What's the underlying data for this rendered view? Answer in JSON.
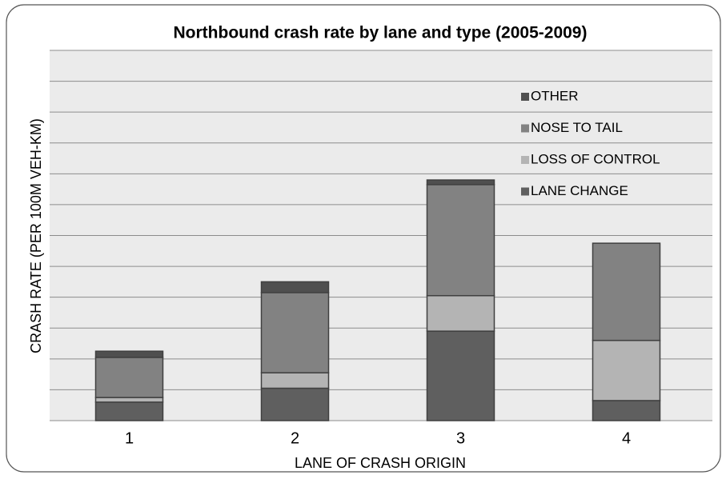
{
  "chart_data": {
    "type": "stacked-bar",
    "title": "Northbound crash rate by lane and type (2005-2009)",
    "x_label": "LANE OF CRASH ORIGIN",
    "y_label": "CRASH RATE (PER 100M VEH-KM)",
    "categories": [
      "1",
      "2",
      "3",
      "4"
    ],
    "series": [
      {
        "name": "LANE CHANGE",
        "color": "#5f5f5f",
        "values": [
          0.6,
          1.05,
          2.9,
          0.65
        ]
      },
      {
        "name": "LOSS OF CONTROL",
        "color": "#b4b4b4",
        "values": [
          0.15,
          0.5,
          1.15,
          1.95
        ]
      },
      {
        "name": "NOSE TO TAIL",
        "color": "#828282",
        "values": [
          1.3,
          2.6,
          3.6,
          3.15
        ]
      },
      {
        "name": "OTHER",
        "color": "#4f4f4f",
        "values": [
          0.2,
          0.35,
          0.15,
          0
        ]
      }
    ],
    "ylim": [
      0,
      12
    ],
    "yticks": [
      0,
      1,
      2,
      3,
      4,
      5,
      6,
      7,
      8,
      9,
      10,
      11,
      12
    ],
    "grid": true,
    "legend": "upper right"
  }
}
